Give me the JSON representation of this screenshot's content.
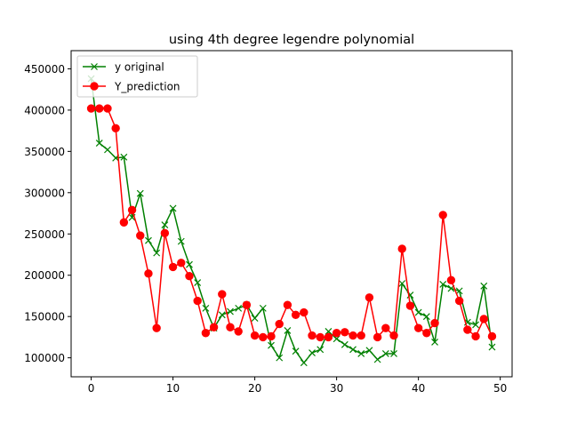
{
  "chart_data": {
    "type": "line",
    "title": "using 4th degree legendre polynomial",
    "xlabel": "",
    "ylabel": "",
    "xlim": [
      -2.45,
      51.45
    ],
    "ylim": [
      77000,
      472000
    ],
    "x_ticks": [
      0,
      10,
      20,
      30,
      40,
      50
    ],
    "y_ticks": [
      100000,
      150000,
      200000,
      250000,
      300000,
      350000,
      400000,
      450000
    ],
    "grid": false,
    "legend_position": "upper-left",
    "x": [
      0,
      1,
      2,
      3,
      4,
      5,
      6,
      7,
      8,
      9,
      10,
      11,
      12,
      13,
      14,
      15,
      16,
      17,
      18,
      19,
      20,
      21,
      22,
      23,
      24,
      25,
      26,
      27,
      28,
      29,
      30,
      31,
      32,
      33,
      34,
      35,
      36,
      37,
      38,
      39,
      40,
      41,
      42,
      43,
      44,
      45,
      46,
      47,
      48,
      49
    ],
    "series": [
      {
        "name": "y original",
        "color": "#008000",
        "marker": "x",
        "values": [
          438000,
          360000,
          352000,
          342000,
          343000,
          270000,
          299000,
          242000,
          227000,
          261000,
          281000,
          241000,
          213000,
          191000,
          160000,
          136000,
          152000,
          156000,
          160000,
          164000,
          148000,
          160000,
          115000,
          100000,
          133000,
          108000,
          94000,
          106000,
          110000,
          132000,
          123000,
          116000,
          110000,
          105000,
          109000,
          98000,
          105000,
          105000,
          190000,
          176000,
          155000,
          150000,
          119000,
          189000,
          184000,
          181000,
          143000,
          140000,
          187000,
          113000
        ]
      },
      {
        "name": "Y_prediction",
        "color": "#ff0000",
        "marker": "o",
        "values": [
          402000,
          402000,
          402000,
          378000,
          264000,
          279000,
          248000,
          202000,
          136000,
          251000,
          210000,
          215000,
          199000,
          169000,
          130000,
          137000,
          177000,
          137000,
          132000,
          164000,
          127000,
          125000,
          126000,
          141000,
          164000,
          152000,
          155000,
          127000,
          125000,
          125000,
          130000,
          131000,
          127000,
          127000,
          173000,
          125000,
          136000,
          127000,
          232000,
          163000,
          136000,
          130000,
          142000,
          273000,
          194000,
          169000,
          134000,
          126000,
          147000,
          126000
        ]
      }
    ]
  }
}
